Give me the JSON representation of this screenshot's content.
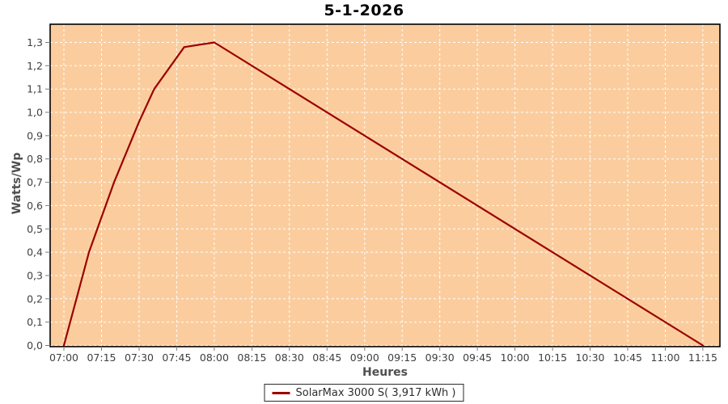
{
  "chart_data": {
    "type": "line",
    "title": "5-1-2026",
    "xlabel": "Heures",
    "ylabel": "Watts/Wp",
    "legend_label": "SolarMax 3000 S( 3,917 kWh )",
    "legend_position": "bottom-center",
    "grid": true,
    "grid_style": "white-dashed",
    "x_ticks": [
      "07:00",
      "07:15",
      "07:30",
      "07:45",
      "08:00",
      "08:15",
      "08:30",
      "08:45",
      "09:00",
      "09:15",
      "09:30",
      "09:45",
      "10:00",
      "10:15",
      "10:30",
      "10:45",
      "11:00",
      "11:15"
    ],
    "y_ticks": [
      "0,0",
      "0,1",
      "0,2",
      "0,3",
      "0,4",
      "0,5",
      "0,6",
      "0,7",
      "0,8",
      "0,9",
      "1,0",
      "1,1",
      "1,2",
      "1,3"
    ],
    "ylim": [
      0.0,
      1.38
    ],
    "xlim": [
      "06:54",
      "11:22"
    ],
    "series": [
      {
        "name": "SolarMax 3000 S",
        "energy_shown_in_legend": "3,917 kWh",
        "color": "#9c0000",
        "shape": "steep rise from 07:00 to peak at 08:00, then perfectly linear decline to zero at 11:15",
        "points": [
          [
            "07:00",
            0.0
          ],
          [
            "07:05",
            0.2
          ],
          [
            "07:10",
            0.4
          ],
          [
            "07:15",
            0.55
          ],
          [
            "07:20",
            0.7
          ],
          [
            "07:25",
            0.83
          ],
          [
            "07:30",
            0.96
          ],
          [
            "07:36",
            1.1
          ],
          [
            "07:48",
            1.28
          ],
          [
            "08:00",
            1.3
          ],
          [
            "11:15",
            0.0
          ]
        ]
      }
    ],
    "colors": {
      "plot_background": "#fbcd9e",
      "gridline": "#ffffff",
      "line": "#9c0000",
      "plot_border": "#000000",
      "tick_mark": "#7a7a7a",
      "tick_text": "#3f3f3f",
      "axis_label_text": "#4f4f4f",
      "title_text": "#000000",
      "legend_border": "#2b2b2b",
      "legend_background": "#ffffff",
      "outer_background": "#ffffff"
    }
  }
}
